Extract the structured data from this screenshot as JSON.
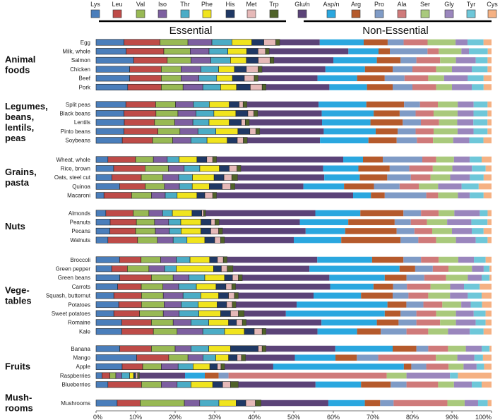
{
  "chart_data": {
    "type": "bar",
    "orientation": "horizontal",
    "stacked": true,
    "xlim": [
      0,
      100
    ],
    "xticks": [
      "0%",
      "10%",
      "20%",
      "30%",
      "40%",
      "50%",
      "60%",
      "70%",
      "80%",
      "90%",
      "100%"
    ],
    "grid": false,
    "legend_position": "top",
    "headers": {
      "essential": "Essential",
      "non_essential": "Non-Essential"
    },
    "essential_count": 9,
    "amino_acids": [
      "Lys",
      "Leu",
      "Val",
      "Iso",
      "Thr",
      "Phe",
      "His",
      "Met",
      "Trp",
      "Glu/n",
      "Asp/n",
      "Arg",
      "Pro",
      "Ala",
      "Ser",
      "Gly",
      "Tyr",
      "Cys"
    ],
    "colors": [
      "#4a7ebb",
      "#be4b48",
      "#98b954",
      "#7d5fa0",
      "#4bacc6",
      "#f0e41e",
      "#1f3864",
      "#e6b9b8",
      "#4f6228",
      "#5b4378",
      "#2aa7df",
      "#b55a2c",
      "#7f9bc6",
      "#cf7a7a",
      "#a9c97c",
      "#9a86bd",
      "#6ec7d9",
      "#f5b183"
    ],
    "groups": [
      {
        "name": [
          "Animal",
          "foods"
        ],
        "foods": [
          {
            "name": "Egg",
            "values": [
              7.0,
              9.0,
              7.0,
              6.0,
              5.0,
              5.0,
              3.0,
              3.0,
              1.0,
              10.0,
              11.0,
              6.0,
              4.0,
              6.0,
              7.0,
              3.0,
              4.0,
              2.0
            ]
          },
          {
            "name": "Milk, whole",
            "values": [
              8.0,
              10.0,
              7.0,
              5.0,
              5.0,
              5.0,
              3.0,
              2.0,
              1.0,
              21.0,
              8.0,
              3.0,
              10.0,
              3.0,
              6.0,
              2.0,
              5.0,
              1.0
            ]
          },
          {
            "name": "Salmon",
            "values": [
              9.5,
              8.5,
              6.0,
              5.0,
              5.0,
              4.0,
              3.0,
              3.0,
              1.0,
              15.0,
              11.0,
              6.0,
              4.0,
              6.0,
              4.0,
              5.0,
              3.0,
              1.0
            ]
          },
          {
            "name": "Chicken",
            "values": [
              8.5,
              8.0,
              5.0,
              5.0,
              4.5,
              4.0,
              3.0,
              3.0,
              1.0,
              16.0,
              10.0,
              7.0,
              5.0,
              6.0,
              4.0,
              5.0,
              4.0,
              1.0
            ]
          },
          {
            "name": "Beef",
            "values": [
              8.5,
              8.0,
              5.0,
              4.5,
              4.5,
              4.0,
              3.0,
              2.5,
              1.0,
              15.0,
              10.0,
              7.0,
              5.0,
              6.0,
              4.0,
              6.0,
              4.0,
              2.0
            ]
          },
          {
            "name": "Pork",
            "values": [
              8.0,
              8.5,
              5.5,
              5.0,
              4.5,
              4.0,
              3.5,
              3.0,
              1.0,
              16.0,
              9.5,
              6.5,
              5.0,
              6.0,
              4.0,
              5.0,
              3.0,
              2.0
            ]
          }
        ]
      },
      {
        "name": [
          "Legumes,",
          "beans,",
          "lentils,",
          "peas"
        ],
        "foods": [
          {
            "name": "Split peas",
            "values": [
              7.5,
              7.5,
              5.0,
              4.5,
              4.0,
              5.0,
              2.5,
              1.0,
              1.0,
              18.0,
              12.0,
              9.5,
              4.0,
              4.5,
              5.0,
              4.0,
              3.5,
              1.0
            ]
          },
          {
            "name": "Black beans",
            "values": [
              7.0,
              8.0,
              5.5,
              4.5,
              4.5,
              5.5,
              3.0,
              1.5,
              1.0,
              16.0,
              13.0,
              6.5,
              4.0,
              4.5,
              6.0,
              4.0,
              3.5,
              1.0
            ]
          },
          {
            "name": "Lentils",
            "values": [
              7.0,
              7.5,
              5.0,
              4.5,
              4.0,
              5.0,
              3.0,
              1.0,
              1.0,
              18.0,
              12.0,
              8.0,
              4.5,
              4.5,
              4.5,
              4.0,
              3.5,
              1.0
            ]
          },
          {
            "name": "Pinto beans",
            "values": [
              7.0,
              8.5,
              5.5,
              4.5,
              4.5,
              5.5,
              3.0,
              1.5,
              1.0,
              16.0,
              13.0,
              5.5,
              4.5,
              4.5,
              6.0,
              4.0,
              3.5,
              1.0
            ]
          },
          {
            "name": "Soybeans",
            "values": [
              6.5,
              7.5,
              5.0,
              4.5,
              4.0,
              5.0,
              2.5,
              1.5,
              1.0,
              18.0,
              12.0,
              7.0,
              5.0,
              4.0,
              5.0,
              4.0,
              3.5,
              2.0
            ]
          }
        ]
      },
      {
        "name": [
          "Grains,",
          "pasta"
        ],
        "foods": [
          {
            "name": "Wheat, whole",
            "values": [
              3.0,
              7.0,
              4.5,
              3.5,
              3.0,
              4.5,
              2.5,
              1.5,
              1.0,
              32.0,
              5.0,
              5.0,
              10.0,
              3.5,
              4.5,
              4.0,
              3.0,
              2.5
            ]
          },
          {
            "name": "Rice, brown",
            "values": [
              4.5,
              8.0,
              6.0,
              4.0,
              4.0,
              5.0,
              2.5,
              2.0,
              1.0,
              21.0,
              9.0,
              8.0,
              5.0,
              6.0,
              5.0,
              5.0,
              3.5,
              1.5
            ]
          },
          {
            "name": "Oats, steel cut",
            "values": [
              4.0,
              7.5,
              5.5,
              4.0,
              3.5,
              5.5,
              2.5,
              2.0,
              1.5,
              22.0,
              9.0,
              7.0,
              6.0,
              5.0,
              5.0,
              5.0,
              3.5,
              2.0
            ]
          },
          {
            "name": "Quinoa",
            "values": [
              5.5,
              6.0,
              4.5,
              3.5,
              3.0,
              4.0,
              3.0,
              2.0,
              1.0,
              16.0,
              9.5,
              7.0,
              6.0,
              4.5,
              4.5,
              5.5,
              4.0,
              3.0
            ]
          },
          {
            "name": "Macaroni",
            "values": [
              2.0,
              7.0,
              5.0,
              3.5,
              3.0,
              5.0,
              2.0,
              2.0,
              1.0,
              34.5,
              4.5,
              3.5,
              10.5,
              3.0,
              5.0,
              3.0,
              3.5,
              2.0
            ]
          }
        ]
      },
      {
        "name": [
          "Nuts"
        ],
        "foods": [
          {
            "name": "Almonds",
            "values": [
              2.5,
              7.0,
              4.0,
              3.5,
              2.5,
              5.0,
              2.5,
              0.5,
              0.5,
              28.0,
              11.5,
              11.0,
              4.5,
              4.5,
              4.0,
              6.5,
              2.0,
              1.0
            ]
          },
          {
            "name": "Peanuts",
            "values": [
              3.5,
              6.5,
              4.5,
              3.5,
              3.0,
              5.0,
              2.5,
              1.0,
              1.0,
              20.0,
              12.0,
              11.5,
              4.0,
              4.0,
              5.0,
              6.0,
              4.0,
              1.0
            ]
          },
          {
            "name": "Pecans",
            "values": [
              3.5,
              6.5,
              5.0,
              3.5,
              3.0,
              5.0,
              2.5,
              2.0,
              1.0,
              21.0,
              10.0,
              13.0,
              4.5,
              4.5,
              5.0,
              5.0,
              3.0,
              2.0
            ]
          },
          {
            "name": "Walnuts",
            "values": [
              3.0,
              7.5,
              5.0,
              4.0,
              3.5,
              4.5,
              2.5,
              1.5,
              1.0,
              17.5,
              12.0,
              15.0,
              4.5,
              4.5,
              5.0,
              5.0,
              3.0,
              1.0
            ]
          }
        ]
      },
      {
        "name": [
          "Vege-",
          "tables"
        ],
        "foods": [
          {
            "name": "Broccoli",
            "values": [
              6.0,
              5.5,
              5.0,
              4.0,
              3.5,
              5.0,
              2.0,
              1.5,
              1.0,
              23.0,
              14.0,
              8.0,
              4.5,
              4.5,
              5.0,
              4.0,
              3.0,
              1.5
            ]
          },
          {
            "name": "Green pepper",
            "values": [
              4.0,
              4.0,
              5.5,
              4.0,
              3.0,
              9.5,
              2.0,
              1.5,
              1.5,
              19.5,
              23.0,
              4.0,
              4.5,
              4.0,
              6.0,
              3.0,
              1.5,
              0.5
            ]
          },
          {
            "name": "Green beans",
            "values": [
              6.0,
              8.0,
              5.5,
              4.0,
              4.0,
              5.0,
              2.0,
              1.5,
              1.0,
              22.0,
              14.0,
              5.5,
              4.5,
              5.5,
              5.5,
              3.5,
              2.0,
              0.5
            ]
          },
          {
            "name": "Carrots",
            "values": [
              5.5,
              6.0,
              5.5,
              4.0,
              4.5,
              5.0,
              2.5,
              1.5,
              1.0,
              24.0,
              11.0,
              5.0,
              3.5,
              6.0,
              5.0,
              3.5,
              4.0,
              3.0
            ]
          },
          {
            "name": "Squash, butternut",
            "values": [
              4.5,
              7.0,
              5.5,
              5.0,
              4.5,
              4.5,
              2.5,
              1.5,
              1.0,
              19.0,
              12.0,
              8.0,
              4.0,
              5.0,
              5.5,
              4.5,
              3.5,
              2.5
            ]
          },
          {
            "name": "Potatoes",
            "values": [
              6.0,
              6.0,
              6.0,
              4.5,
              4.5,
              5.0,
              2.5,
              1.5,
              1.0,
              16.0,
              24.0,
              5.0,
              4.5,
              5.0,
              5.0,
              2.5,
              3.0,
              2.5
            ]
          },
          {
            "name": "Sweet potatoes",
            "values": [
              4.5,
              6.5,
              6.0,
              4.0,
              5.0,
              5.5,
              2.5,
              2.0,
              1.5,
              10.5,
              25.0,
              4.0,
              4.0,
              5.0,
              5.0,
              4.5,
              3.0,
              1.5
            ]
          },
          {
            "name": "Romaine",
            "values": [
              6.5,
              7.5,
              5.5,
              4.5,
              4.5,
              5.0,
              2.0,
              1.5,
              1.0,
              19.0,
              14.0,
              5.5,
              4.5,
              6.0,
              4.0,
              5.0,
              2.5,
              1.5
            ]
          },
          {
            "name": "Kale",
            "values": [
              6.5,
              8.0,
              6.0,
              6.5,
              5.5,
              5.0,
              2.5,
              2.0,
              1.0,
              13.0,
              10.0,
              6.0,
              6.5,
              5.5,
              5.0,
              5.5,
              3.5,
              2.0
            ]
          }
        ]
      },
      {
        "name": [
          "Fruits"
        ],
        "foods": [
          {
            "name": "Banana",
            "values": [
              6.0,
              8.0,
              6.0,
              4.0,
              4.5,
              5.5,
              7.0,
              1.0,
              1.0,
              17.5,
              14.5,
              6.0,
              3.0,
              5.0,
              4.5,
              4.0,
              2.0,
              0.5
            ]
          },
          {
            "name": "Mango",
            "values": [
              9.5,
              7.5,
              4.5,
              3.5,
              3.0,
              3.0,
              2.0,
              1.0,
              1.0,
              11.5,
              9.5,
              5.0,
              5.0,
              13.5,
              5.0,
              4.0,
              2.0,
              2.0
            ]
          },
          {
            "name": "Apple",
            "values": [
              7.0,
              5.5,
              5.0,
              4.5,
              4.0,
              4.5,
              2.0,
              1.0,
              1.0,
              13.0,
              35.0,
              2.0,
              4.0,
              6.0,
              4.0,
              3.5,
              2.0,
              2.0
            ]
          },
          {
            "name": "Raspberries",
            "values": [
              1.5,
              2.0,
              1.5,
              1.5,
              2.0,
              1.0,
              0.5,
              0.5,
              0.5,
              11.5,
              5.0,
              3.5,
              2.5,
              40.0,
              5.0,
              11.0,
              2.0,
              8.5
            ]
          },
          {
            "name": "Blueberries",
            "values": [
              3.0,
              8.5,
              5.0,
              4.0,
              3.5,
              5.5,
              2.5,
              2.0,
              2.0,
              19.5,
              11.5,
              7.5,
              4.0,
              8.0,
              4.0,
              4.5,
              2.5,
              2.5
            ]
          }
        ]
      },
      {
        "name": [
          "Mush-",
          "rooms"
        ],
        "foods": [
          {
            "name": "Mushrooms",
            "values": [
              5.5,
              6.0,
              11.5,
              4.0,
              5.0,
              4.5,
              2.5,
              2.5,
              1.5,
              17.5,
              9.5,
              4.0,
              3.5,
              14.0,
              4.5,
              3.5,
              2.5,
              1.0
            ]
          }
        ]
      }
    ]
  }
}
